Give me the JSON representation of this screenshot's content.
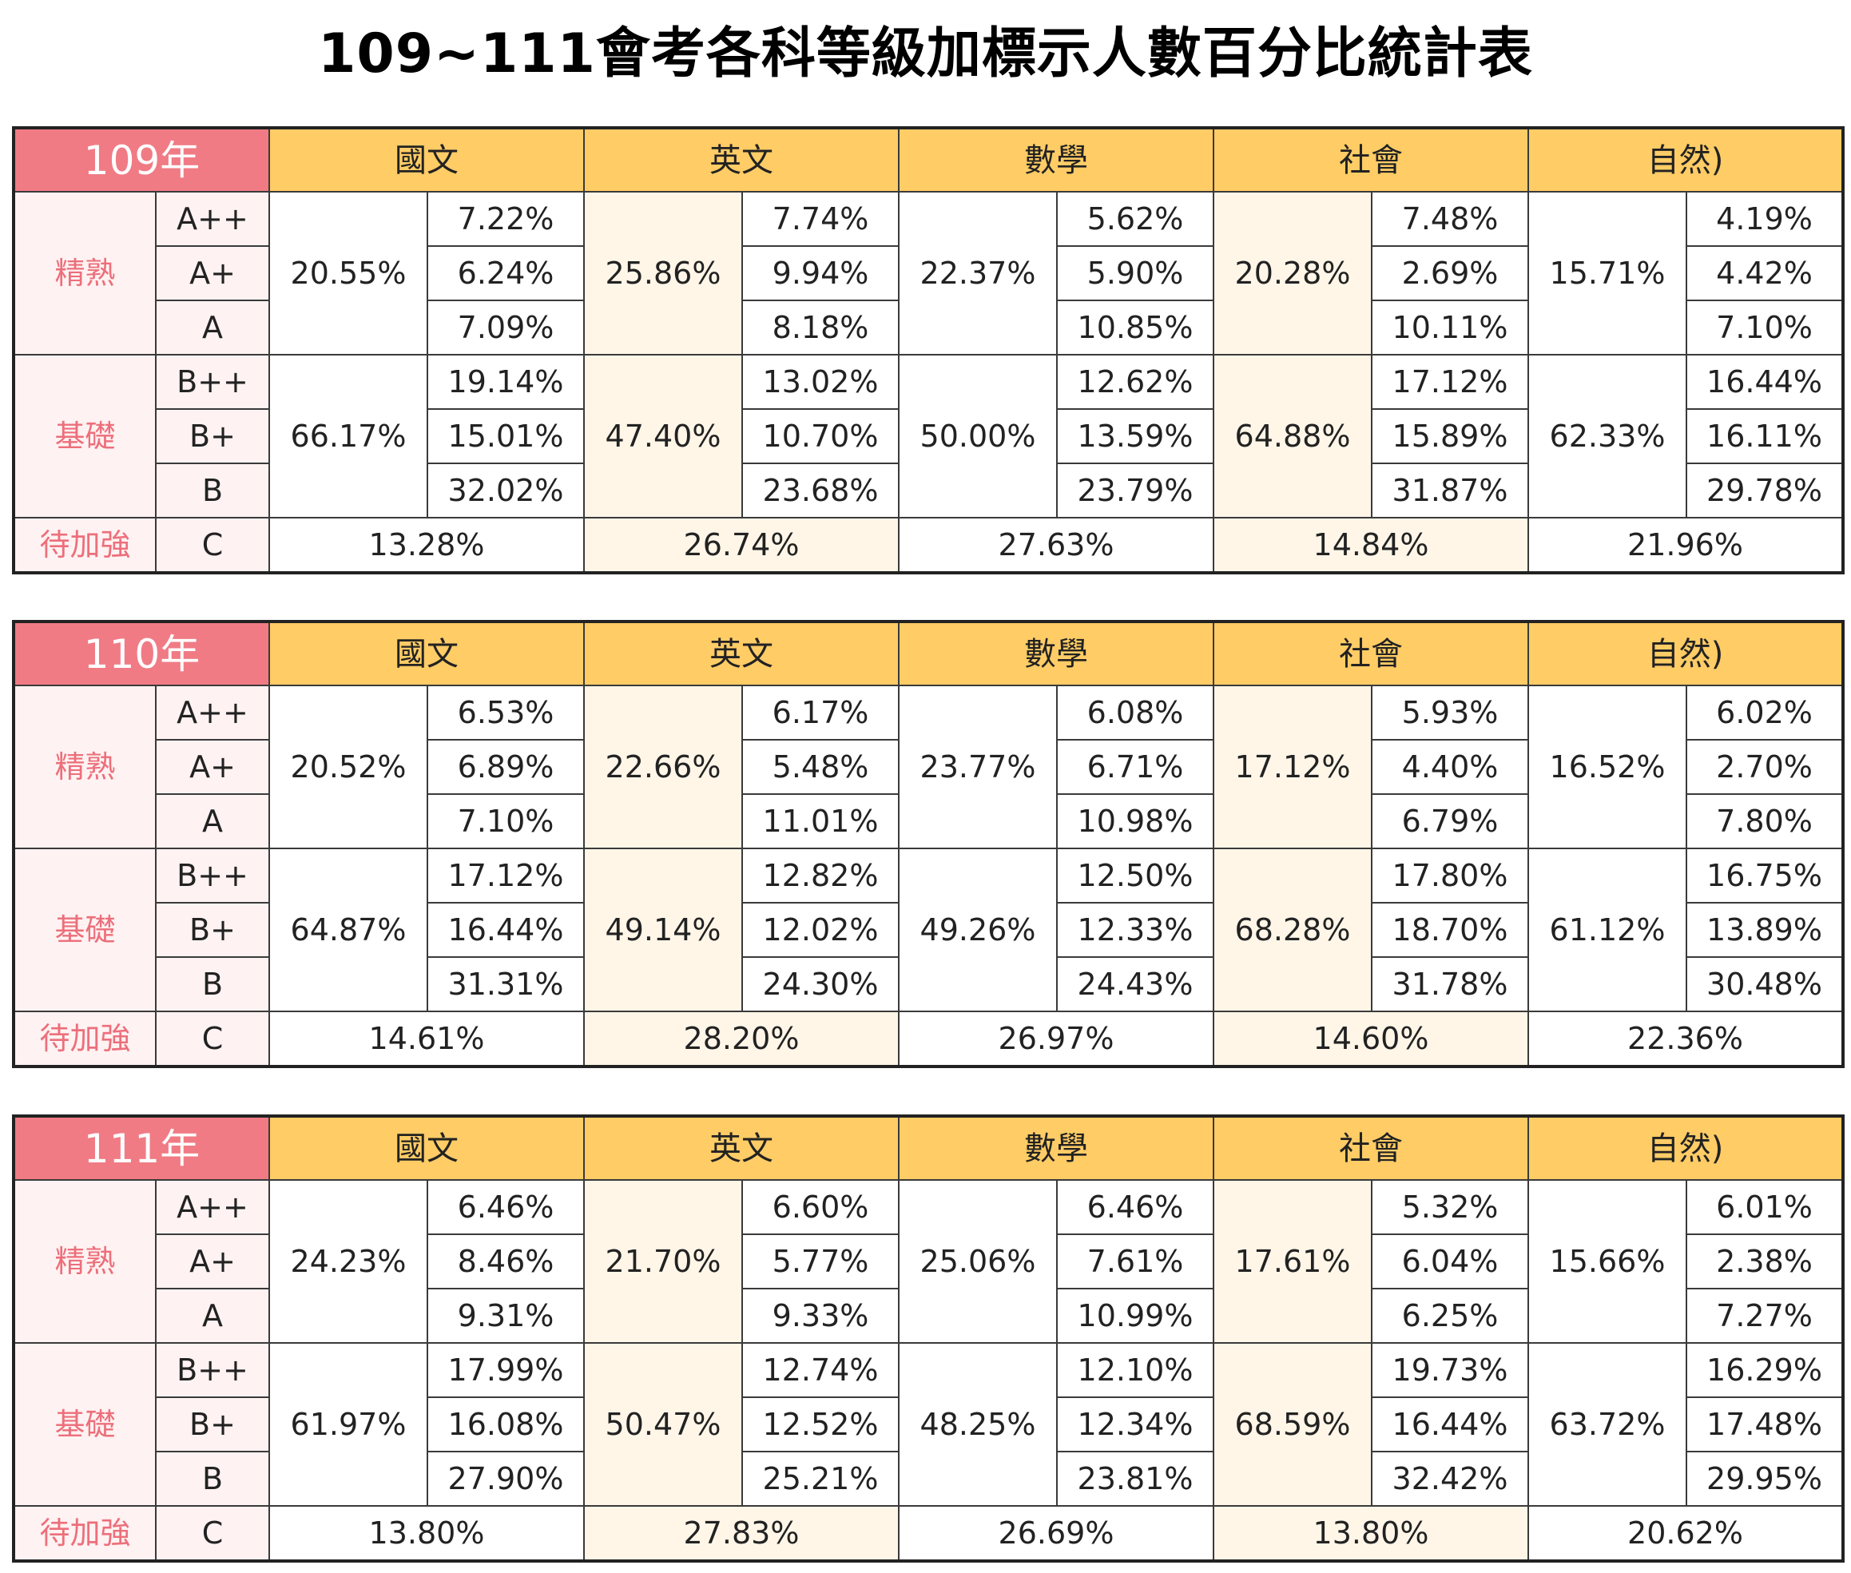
{
  "title": "109~111會考各科等級加標示人數百分比統計表",
  "colors": {
    "year_header": "#f07b84",
    "subject_header": "#ffcc66",
    "group_text": "#ec6f7b",
    "cream": "#fff6e8",
    "pink": "#fff2f2"
  },
  "labels": {
    "subjects": [
      "國文",
      "英文",
      "數學",
      "社會",
      "自然)"
    ],
    "groups": [
      "精熟",
      "基礎",
      "待加強"
    ],
    "levels": [
      "A++",
      "A+",
      "A",
      "B++",
      "B+",
      "B",
      "C"
    ]
  },
  "chart_data": {
    "type": "table",
    "years": [
      {
        "year": "109年",
        "subjects": [
          {
            "mastery": "20.55%",
            "a": [
              "7.22%",
              "6.24%",
              "7.09%"
            ],
            "basic": "66.17%",
            "b": [
              "19.14%",
              "15.01%",
              "32.02%"
            ],
            "c": "13.28%"
          },
          {
            "mastery": "25.86%",
            "a": [
              "7.74%",
              "9.94%",
              "8.18%"
            ],
            "basic": "47.40%",
            "b": [
              "13.02%",
              "10.70%",
              "23.68%"
            ],
            "c": "26.74%"
          },
          {
            "mastery": "22.37%",
            "a": [
              "5.62%",
              "5.90%",
              "10.85%"
            ],
            "basic": "50.00%",
            "b": [
              "12.62%",
              "13.59%",
              "23.79%"
            ],
            "c": "27.63%"
          },
          {
            "mastery": "20.28%",
            "a": [
              "7.48%",
              "2.69%",
              "10.11%"
            ],
            "basic": "64.88%",
            "b": [
              "17.12%",
              "15.89%",
              "31.87%"
            ],
            "c": "14.84%"
          },
          {
            "mastery": "15.71%",
            "a": [
              "4.19%",
              "4.42%",
              "7.10%"
            ],
            "basic": "62.33%",
            "b": [
              "16.44%",
              "16.11%",
              "29.78%"
            ],
            "c": "21.96%"
          }
        ]
      },
      {
        "year": "110年",
        "subjects": [
          {
            "mastery": "20.52%",
            "a": [
              "6.53%",
              "6.89%",
              "7.10%"
            ],
            "basic": "64.87%",
            "b": [
              "17.12%",
              "16.44%",
              "31.31%"
            ],
            "c": "14.61%"
          },
          {
            "mastery": "22.66%",
            "a": [
              "6.17%",
              "5.48%",
              "11.01%"
            ],
            "basic": "49.14%",
            "b": [
              "12.82%",
              "12.02%",
              "24.30%"
            ],
            "c": "28.20%"
          },
          {
            "mastery": "23.77%",
            "a": [
              "6.08%",
              "6.71%",
              "10.98%"
            ],
            "basic": "49.26%",
            "b": [
              "12.50%",
              "12.33%",
              "24.43%"
            ],
            "c": "26.97%"
          },
          {
            "mastery": "17.12%",
            "a": [
              "5.93%",
              "4.40%",
              "6.79%"
            ],
            "basic": "68.28%",
            "b": [
              "17.80%",
              "18.70%",
              "31.78%"
            ],
            "c": "14.60%"
          },
          {
            "mastery": "16.52%",
            "a": [
              "6.02%",
              "2.70%",
              "7.80%"
            ],
            "basic": "61.12%",
            "b": [
              "16.75%",
              "13.89%",
              "30.48%"
            ],
            "c": "22.36%"
          }
        ]
      },
      {
        "year": "111年",
        "subjects": [
          {
            "mastery": "24.23%",
            "a": [
              "6.46%",
              "8.46%",
              "9.31%"
            ],
            "basic": "61.97%",
            "b": [
              "17.99%",
              "16.08%",
              "27.90%"
            ],
            "c": "13.80%"
          },
          {
            "mastery": "21.70%",
            "a": [
              "6.60%",
              "5.77%",
              "9.33%"
            ],
            "basic": "50.47%",
            "b": [
              "12.74%",
              "12.52%",
              "25.21%"
            ],
            "c": "27.83%"
          },
          {
            "mastery": "25.06%",
            "a": [
              "6.46%",
              "7.61%",
              "10.99%"
            ],
            "basic": "48.25%",
            "b": [
              "12.10%",
              "12.34%",
              "23.81%"
            ],
            "c": "26.69%"
          },
          {
            "mastery": "17.61%",
            "a": [
              "5.32%",
              "6.04%",
              "6.25%"
            ],
            "basic": "68.59%",
            "b": [
              "19.73%",
              "16.44%",
              "32.42%"
            ],
            "c": "13.80%"
          },
          {
            "mastery": "15.66%",
            "a": [
              "6.01%",
              "2.38%",
              "7.27%"
            ],
            "basic": "63.72%",
            "b": [
              "16.29%",
              "17.48%",
              "29.95%"
            ],
            "c": "20.62%"
          }
        ]
      }
    ]
  }
}
